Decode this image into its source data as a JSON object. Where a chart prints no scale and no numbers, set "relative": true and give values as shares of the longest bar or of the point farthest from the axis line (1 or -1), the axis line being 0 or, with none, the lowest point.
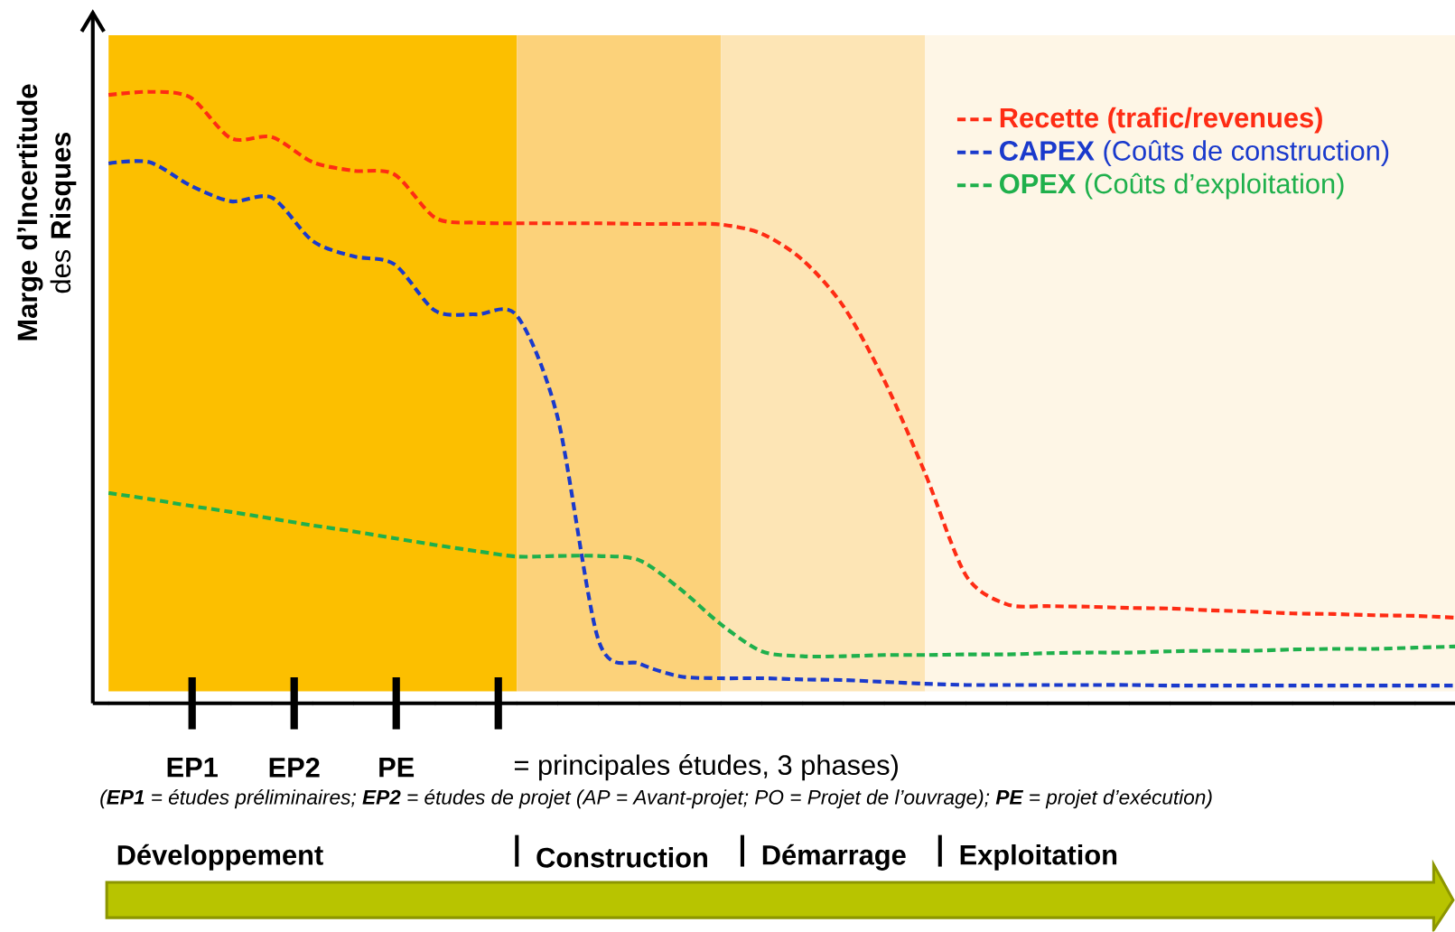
{
  "chart_data": {
    "type": "line",
    "relative": true,
    "line_style": "dashed",
    "legend": "top right",
    "ylabel": "**Marge d’Incertitude** des **Risques**",
    "categories": [
      null,
      null,
      null,
      null,
      null,
      null,
      null,
      null,
      null,
      null,
      null,
      null,
      null,
      null,
      null,
      null,
      null,
      null,
      null,
      null,
      null,
      null,
      null,
      null,
      null,
      null,
      null,
      null,
      null,
      null,
      null,
      null,
      null,
      null
    ],
    "series": [
      {
        "name": "**Recette (trafic/revenues)**",
        "color": "#fe2c14",
        "values": [
          0.995,
          1.0,
          0.991,
          0.924,
          0.926,
          0.885,
          0.871,
          0.865,
          0.794,
          0.786,
          0.785,
          0.785,
          0.785,
          0.784,
          0.784,
          0.783,
          0.768,
          0.725,
          0.649,
          0.528,
          0.376,
          0.209,
          0.162,
          0.159,
          0.158,
          0.156,
          0.155,
          0.152,
          0.15,
          0.147,
          0.146,
          0.144,
          0.143,
          0.14
        ]
      },
      {
        "name": "**CAPEX** (Coûts de construction)",
        "color": "#1a3acc",
        "values": [
          0.883,
          0.885,
          0.847,
          0.821,
          0.827,
          0.756,
          0.731,
          0.718,
          0.642,
          0.636,
          0.634,
          0.467,
          0.103,
          0.065,
          0.044,
          0.041,
          0.041,
          0.039,
          0.038,
          0.035,
          0.032,
          0.03,
          0.03,
          0.03,
          0.03,
          0.03,
          0.029,
          0.029,
          0.029,
          0.029,
          0.029,
          0.029,
          0.029,
          0.029
        ]
      },
      {
        "name": "**OPEX** (Coûts d’exploitation)",
        "color": "#1fb04c",
        "values": [
          0.344,
          0.334,
          0.323,
          0.313,
          0.302,
          0.291,
          0.281,
          0.27,
          0.259,
          0.249,
          0.24,
          0.241,
          0.241,
          0.234,
          0.187,
          0.129,
          0.085,
          0.077,
          0.077,
          0.079,
          0.079,
          0.08,
          0.08,
          0.082,
          0.083,
          0.083,
          0.085,
          0.086,
          0.086,
          0.088,
          0.089,
          0.089,
          0.091,
          0.093
        ]
      }
    ],
    "annotations": [
      "EP1",
      "EP2",
      "PE",
      "= principales études, 3 phases)",
      "(**EP1** = études préliminaires; **EP2** = études de projet (AP = Avant-projet; PO = Projet de l’ouvrage); **PE** = projet d’exécution)",
      "Développement",
      "Construction",
      "Démarrage",
      "Exploitation"
    ]
  }
}
